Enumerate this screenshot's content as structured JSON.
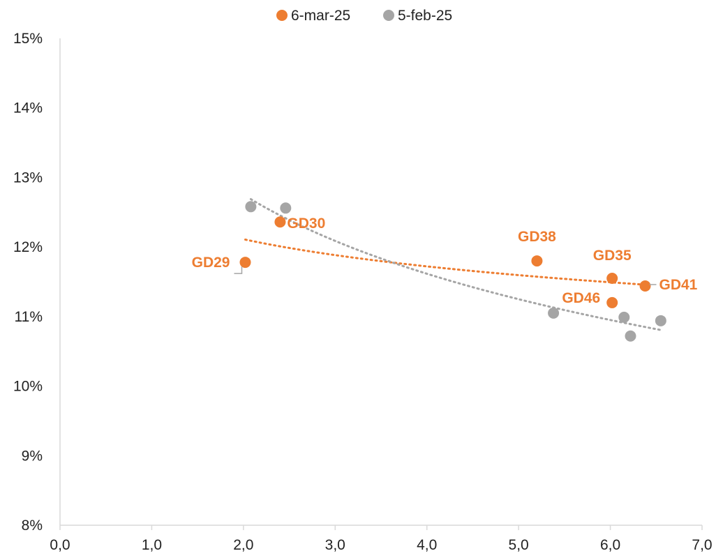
{
  "chart_data": {
    "type": "scatter",
    "title": "",
    "xlabel": "",
    "ylabel": "",
    "xlim": [
      0,
      7
    ],
    "ylim": [
      8,
      15
    ],
    "x_ticks": [
      "0,0",
      "1,0",
      "2,0",
      "3,0",
      "4,0",
      "5,0",
      "6,0",
      "7,0"
    ],
    "y_ticks": [
      "8%",
      "9%",
      "10%",
      "11%",
      "12%",
      "13%",
      "14%",
      "15%"
    ],
    "grid": false,
    "legend_position": "top-center",
    "series": [
      {
        "name": "6-mar-25",
        "color": "#ED7D31",
        "trendline": "logarithmic",
        "points": [
          {
            "x": 2.02,
            "y": 11.78,
            "label": "GD29"
          },
          {
            "x": 2.4,
            "y": 12.36,
            "label": "GD30"
          },
          {
            "x": 5.2,
            "y": 11.8,
            "label": "GD38"
          },
          {
            "x": 6.02,
            "y": 11.55,
            "label": "GD35"
          },
          {
            "x": 6.02,
            "y": 11.2,
            "label": "GD46"
          },
          {
            "x": 6.38,
            "y": 11.44,
            "label": "GD41"
          }
        ]
      },
      {
        "name": "5-feb-25",
        "color": "#A5A5A5",
        "trendline": "logarithmic",
        "points": [
          {
            "x": 2.08,
            "y": 12.58
          },
          {
            "x": 2.46,
            "y": 12.56
          },
          {
            "x": 5.38,
            "y": 11.05
          },
          {
            "x": 6.15,
            "y": 10.99
          },
          {
            "x": 6.22,
            "y": 10.72
          },
          {
            "x": 6.55,
            "y": 10.94
          }
        ]
      }
    ]
  }
}
